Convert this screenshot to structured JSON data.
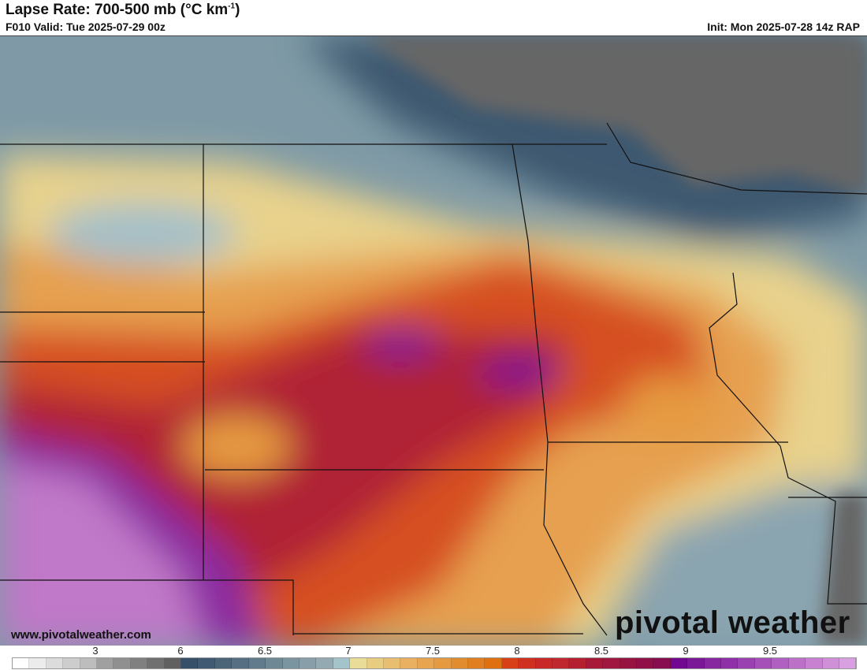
{
  "header": {
    "title_main": "Lapse Rate: 700-500 mb (°C km",
    "title_sup": "-1",
    "title_close": ")",
    "valid": "F010 Valid: Tue 2025-07-29 00z",
    "init": "Init: Mon 2025-07-28 14z RAP"
  },
  "watermark": {
    "site": "www.pivotalweather.com",
    "brand": "pivotal weather"
  },
  "colorbar": {
    "ticks": [
      "3",
      "6",
      "6.5",
      "7",
      "7.5",
      "8",
      "8.5",
      "9",
      "9.5"
    ],
    "colors": [
      "#ffffff",
      "#ececec",
      "#dcdcdc",
      "#cdcdcd",
      "#bdbdbd",
      "#a0a0a0",
      "#909090",
      "#808080",
      "#707070",
      "#606060",
      "#36506a",
      "#3f5a72",
      "#4a6478",
      "#566f82",
      "#627b8c",
      "#6e8896",
      "#7b95a0",
      "#889fa9",
      "#94aab3",
      "#a4c4cc",
      "#e8dc98",
      "#e8cc80",
      "#e8bf70",
      "#e8b060",
      "#e8a550",
      "#e69a40",
      "#e28c30",
      "#e07f20",
      "#de7010",
      "#d84018",
      "#d03020",
      "#c82828",
      "#c02830",
      "#b42030",
      "#a81838",
      "#a01840",
      "#981440",
      "#901048",
      "#880c50",
      "#700890",
      "#7a1898",
      "#8828a0",
      "#9030a8",
      "#9a40b0",
      "#a450b8",
      "#b060c0",
      "#bc70c8",
      "#c880d0",
      "#d090d8",
      "#d8a0e0"
    ]
  }
}
